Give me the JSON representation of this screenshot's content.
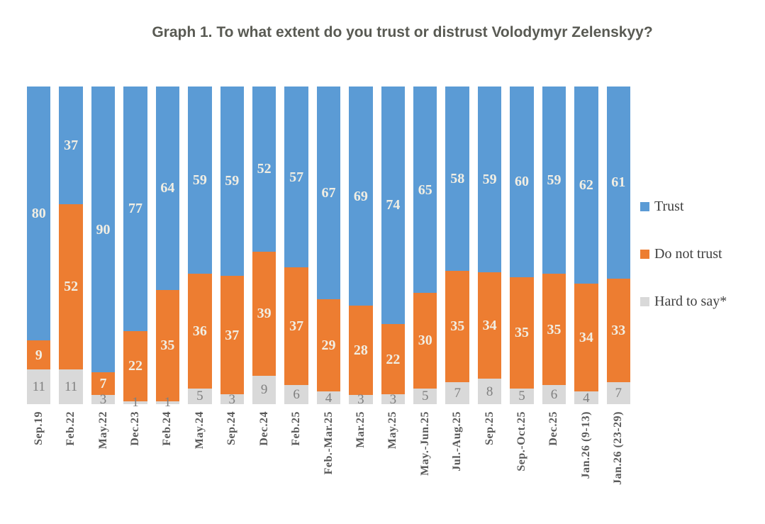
{
  "title": "Graph 1. To what extent do you trust or distrust Volodymyr Zelenskyy?",
  "legend": {
    "position": "right",
    "items": [
      {
        "label": "Trust",
        "color": "#5b9bd5"
      },
      {
        "label": "Do not trust",
        "color": "#ed7d31"
      },
      {
        "label": "Hard to say*",
        "color": "#d9d9d9"
      }
    ]
  },
  "colors": {
    "trust": "#5b9bd5",
    "do_not_trust": "#ed7d31",
    "hard_to_say": "#d9d9d9",
    "bar_value_label": "#f1eee3",
    "gray_value_label": "#7f7f7f",
    "axis_label": "#595959",
    "title_text": "#595a53",
    "background": "#ffffff"
  },
  "chart_data": {
    "type": "bar",
    "subtype": "stacked-percent-column",
    "title": "Graph 1. To what extent do you trust or distrust Volodymyr Zelenskyy?",
    "xlabel": "",
    "ylabel": "",
    "ylim": [
      0,
      100
    ],
    "grid": false,
    "legend_position": "right",
    "categories": [
      "Sep.19",
      "Feb.22",
      "May.22",
      "Dec.23",
      "Feb.24",
      "May.24",
      "Sep.24",
      "Dec.24",
      "Feb.25",
      "Feb.-Mar.25",
      "Mar.25",
      "May.25",
      "May.-Jun.25",
      "Jul.-Aug.25",
      "Sep.25",
      "Sep.-Oct.25",
      "Dec.25",
      "Jan.26 (9-13)",
      "Jan.26 (23-29)"
    ],
    "series": [
      {
        "name": "Trust",
        "color": "#5b9bd5",
        "values": [
          80,
          37,
          90,
          77,
          64,
          59,
          59,
          52,
          57,
          67,
          69,
          74,
          65,
          58,
          59,
          60,
          59,
          62,
          61
        ]
      },
      {
        "name": "Do not trust",
        "color": "#ed7d31",
        "values": [
          9,
          52,
          7,
          22,
          35,
          36,
          37,
          39,
          37,
          29,
          28,
          22,
          30,
          35,
          34,
          35,
          35,
          34,
          33
        ]
      },
      {
        "name": "Hard to say*",
        "color": "#d9d9d9",
        "values": [
          11,
          11,
          3,
          1,
          1,
          5,
          3,
          9,
          6,
          4,
          3,
          3,
          5,
          7,
          8,
          5,
          6,
          4,
          7
        ]
      }
    ]
  }
}
